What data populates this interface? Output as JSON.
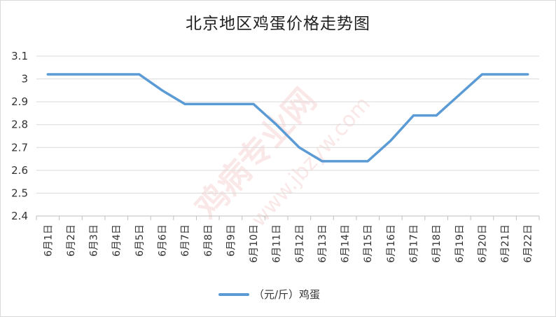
{
  "chart_data": {
    "type": "line",
    "title": "北京地区鸡蛋价格走势图",
    "categories": [
      "6月1日",
      "6月2日",
      "6月3日",
      "6月4日",
      "6月5日",
      "6月6日",
      "6月7日",
      "6月8日",
      "6月9日",
      "6月10日",
      "6月11日",
      "6月12日",
      "6月13日",
      "6月14日",
      "6月15日",
      "6月16日",
      "6月17日",
      "6月18日",
      "6月19日",
      "6月20日",
      "6月21日",
      "6月22日"
    ],
    "series": [
      {
        "name": "（元/斤）鸡蛋",
        "values": [
          3.02,
          3.02,
          3.02,
          3.02,
          3.02,
          2.95,
          2.89,
          2.89,
          2.89,
          2.89,
          2.8,
          2.7,
          2.64,
          2.64,
          2.64,
          2.73,
          2.84,
          2.84,
          2.93,
          3.02,
          3.02,
          3.02
        ]
      }
    ],
    "ylim": [
      2.4,
      3.1
    ],
    "yticks": [
      "2.4",
      "2.5",
      "2.6",
      "2.7",
      "2.8",
      "2.9",
      "3",
      "3.1"
    ],
    "grid": true,
    "legend_position": "bottom",
    "line_color": "#5b9bd5",
    "watermark": [
      "鸡病专业网",
      "www.jbzyw.com"
    ]
  }
}
